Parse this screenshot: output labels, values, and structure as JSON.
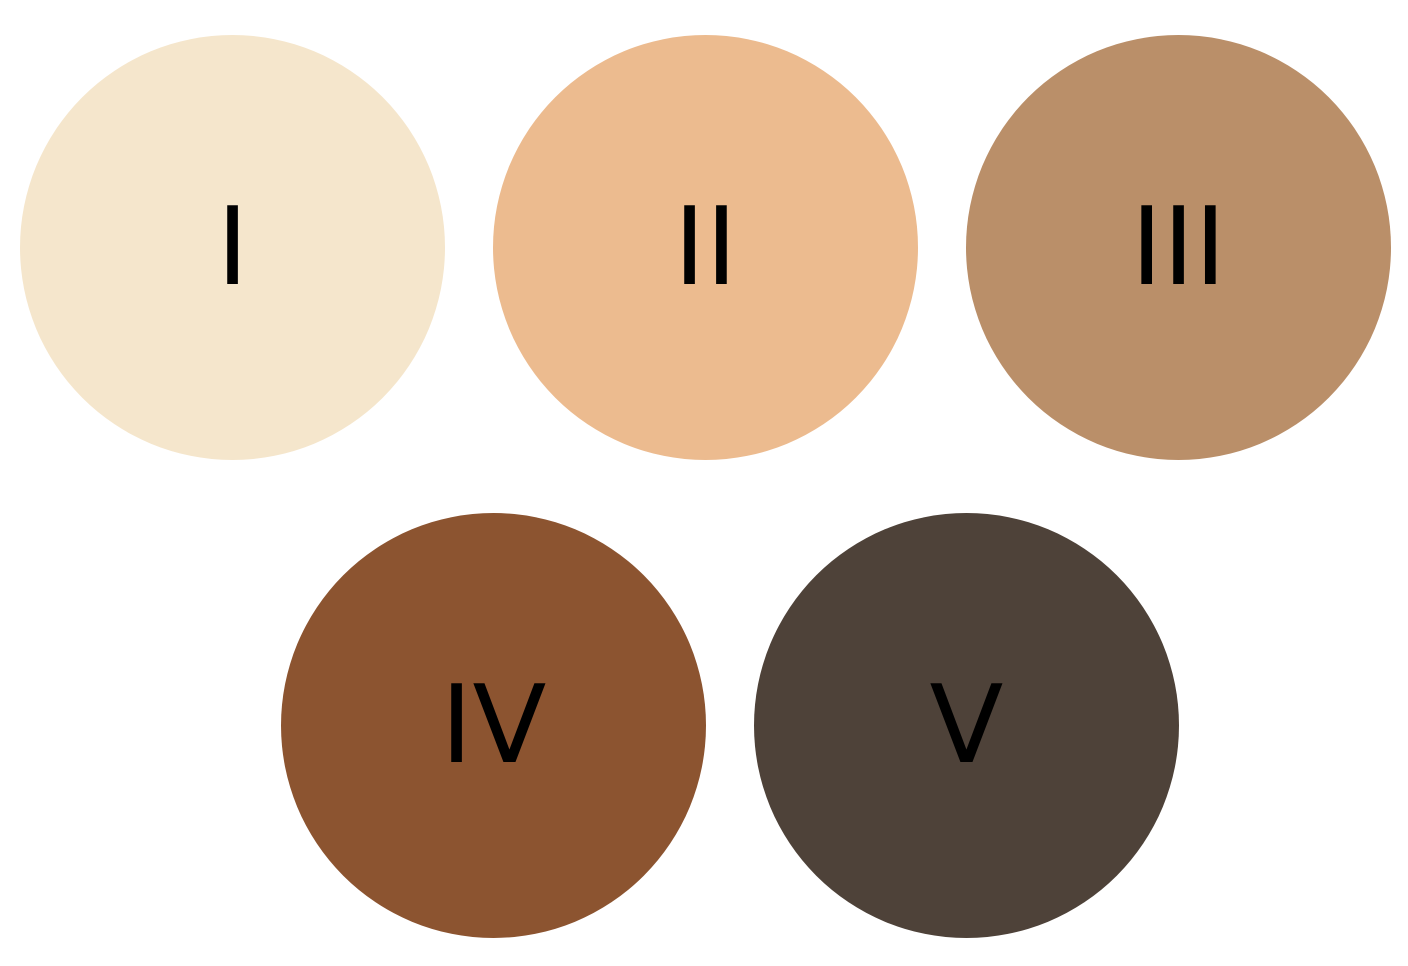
{
  "swatches": [
    {
      "label": "I",
      "color": "#F5E6CC"
    },
    {
      "label": "II",
      "color": "#ECBB8F"
    },
    {
      "label": "III",
      "color": "#BA8F69"
    },
    {
      "label": "IV",
      "color": "#8C5430"
    },
    {
      "label": "V",
      "color": "#4E4239"
    }
  ]
}
